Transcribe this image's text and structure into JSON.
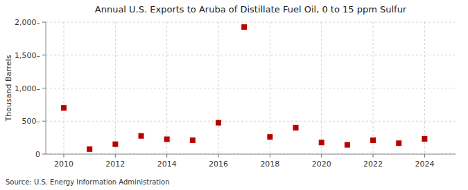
{
  "chart_data": {
    "type": "scatter",
    "title": "Annual U.S. Exports to Aruba of Distillate Fuel Oil, 0 to 15 ppm Sulfur",
    "y_label": "Thousand Barrels",
    "annotations": [
      "Source: U.S. Energy Information Administration"
    ],
    "x": [
      2010,
      2011,
      2012,
      2013,
      2014,
      2015,
      2016,
      2017,
      2018,
      2019,
      2020,
      2021,
      2022,
      2023,
      2024
    ],
    "values": [
      700,
      75,
      150,
      275,
      225,
      210,
      475,
      1925,
      260,
      400,
      175,
      140,
      210,
      165,
      230
    ],
    "color": "#bb0000",
    "marker": "square",
    "xlim": [
      2009.3,
      2025.2
    ],
    "ylim": [
      0,
      2000
    ],
    "xticks": [
      2010,
      2012,
      2014,
      2016,
      2018,
      2020,
      2022,
      2024
    ],
    "yticks": [
      0,
      {
        "value": 500,
        "label": "500–"
      },
      {
        "value": 1000,
        "label": "1,000–"
      },
      {
        "value": 1500,
        "label": "1,500–"
      },
      {
        "value": 2000,
        "label": "2,000–"
      }
    ],
    "grid": true
  }
}
